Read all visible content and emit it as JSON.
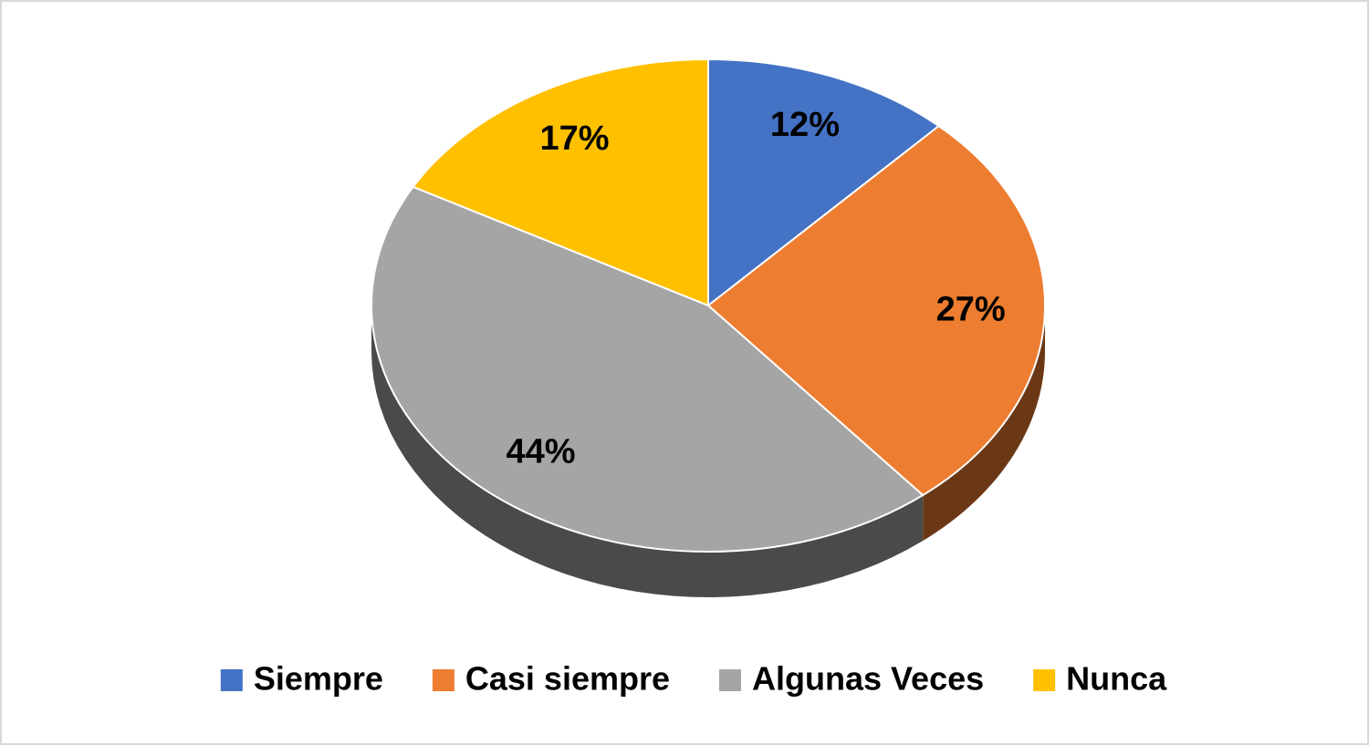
{
  "chart_data": {
    "type": "pie",
    "categories": [
      "Siempre",
      "Casi siempre",
      "Algunas Veces",
      "Nunca"
    ],
    "values": [
      12,
      27,
      44,
      17
    ],
    "value_labels": [
      "12%",
      "27%",
      "44%",
      "17%"
    ],
    "colors": [
      "#4472c4",
      "#ed7d31",
      "#a5a5a5",
      "#ffc000"
    ],
    "legend": "bottom"
  }
}
